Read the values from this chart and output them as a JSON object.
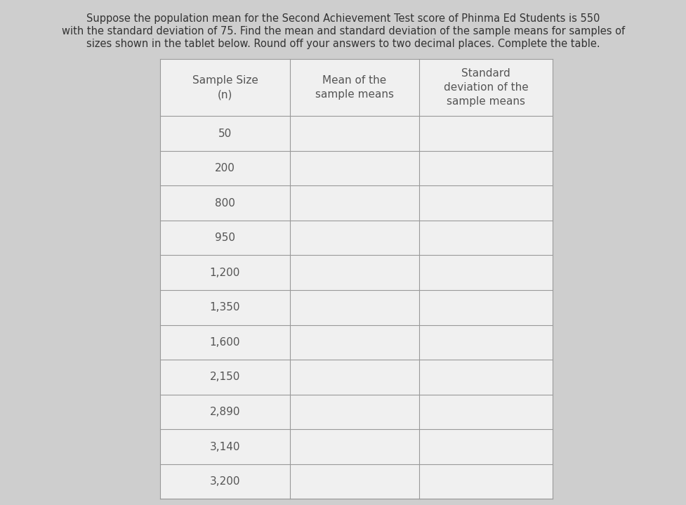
{
  "title_line1": "Suppose the population mean for the Second Achievement Test score of Phinma Ed Students is 550",
  "title_line2": "with the standard deviation of 75. Find the mean and standard deviation of the sample means for samples of",
  "title_line3": "sizes shown in the tablet below. Round off your answers to two decimal places. Complete the table.",
  "col1_header_line1": "Sample Size",
  "col1_header_line2": "(n)",
  "col2_header_line1": "Mean of the",
  "col2_header_line2": "sample means",
  "col3_header_line1": "Standard",
  "col3_header_line2": "deviation of the",
  "col3_header_line3": "sample means",
  "sample_sizes": [
    "50",
    "200",
    "800",
    "950",
    "1,200",
    "1,350",
    "1,600",
    "2,150",
    "2,890",
    "3,140",
    "3,200"
  ],
  "background_color": "#cecece",
  "table_bg": "#f0f0f0",
  "border_color": "#999999",
  "text_color": "#555555",
  "title_color": "#333333",
  "font_size_title": 10.5,
  "font_size_table": 11,
  "font_size_header": 11
}
